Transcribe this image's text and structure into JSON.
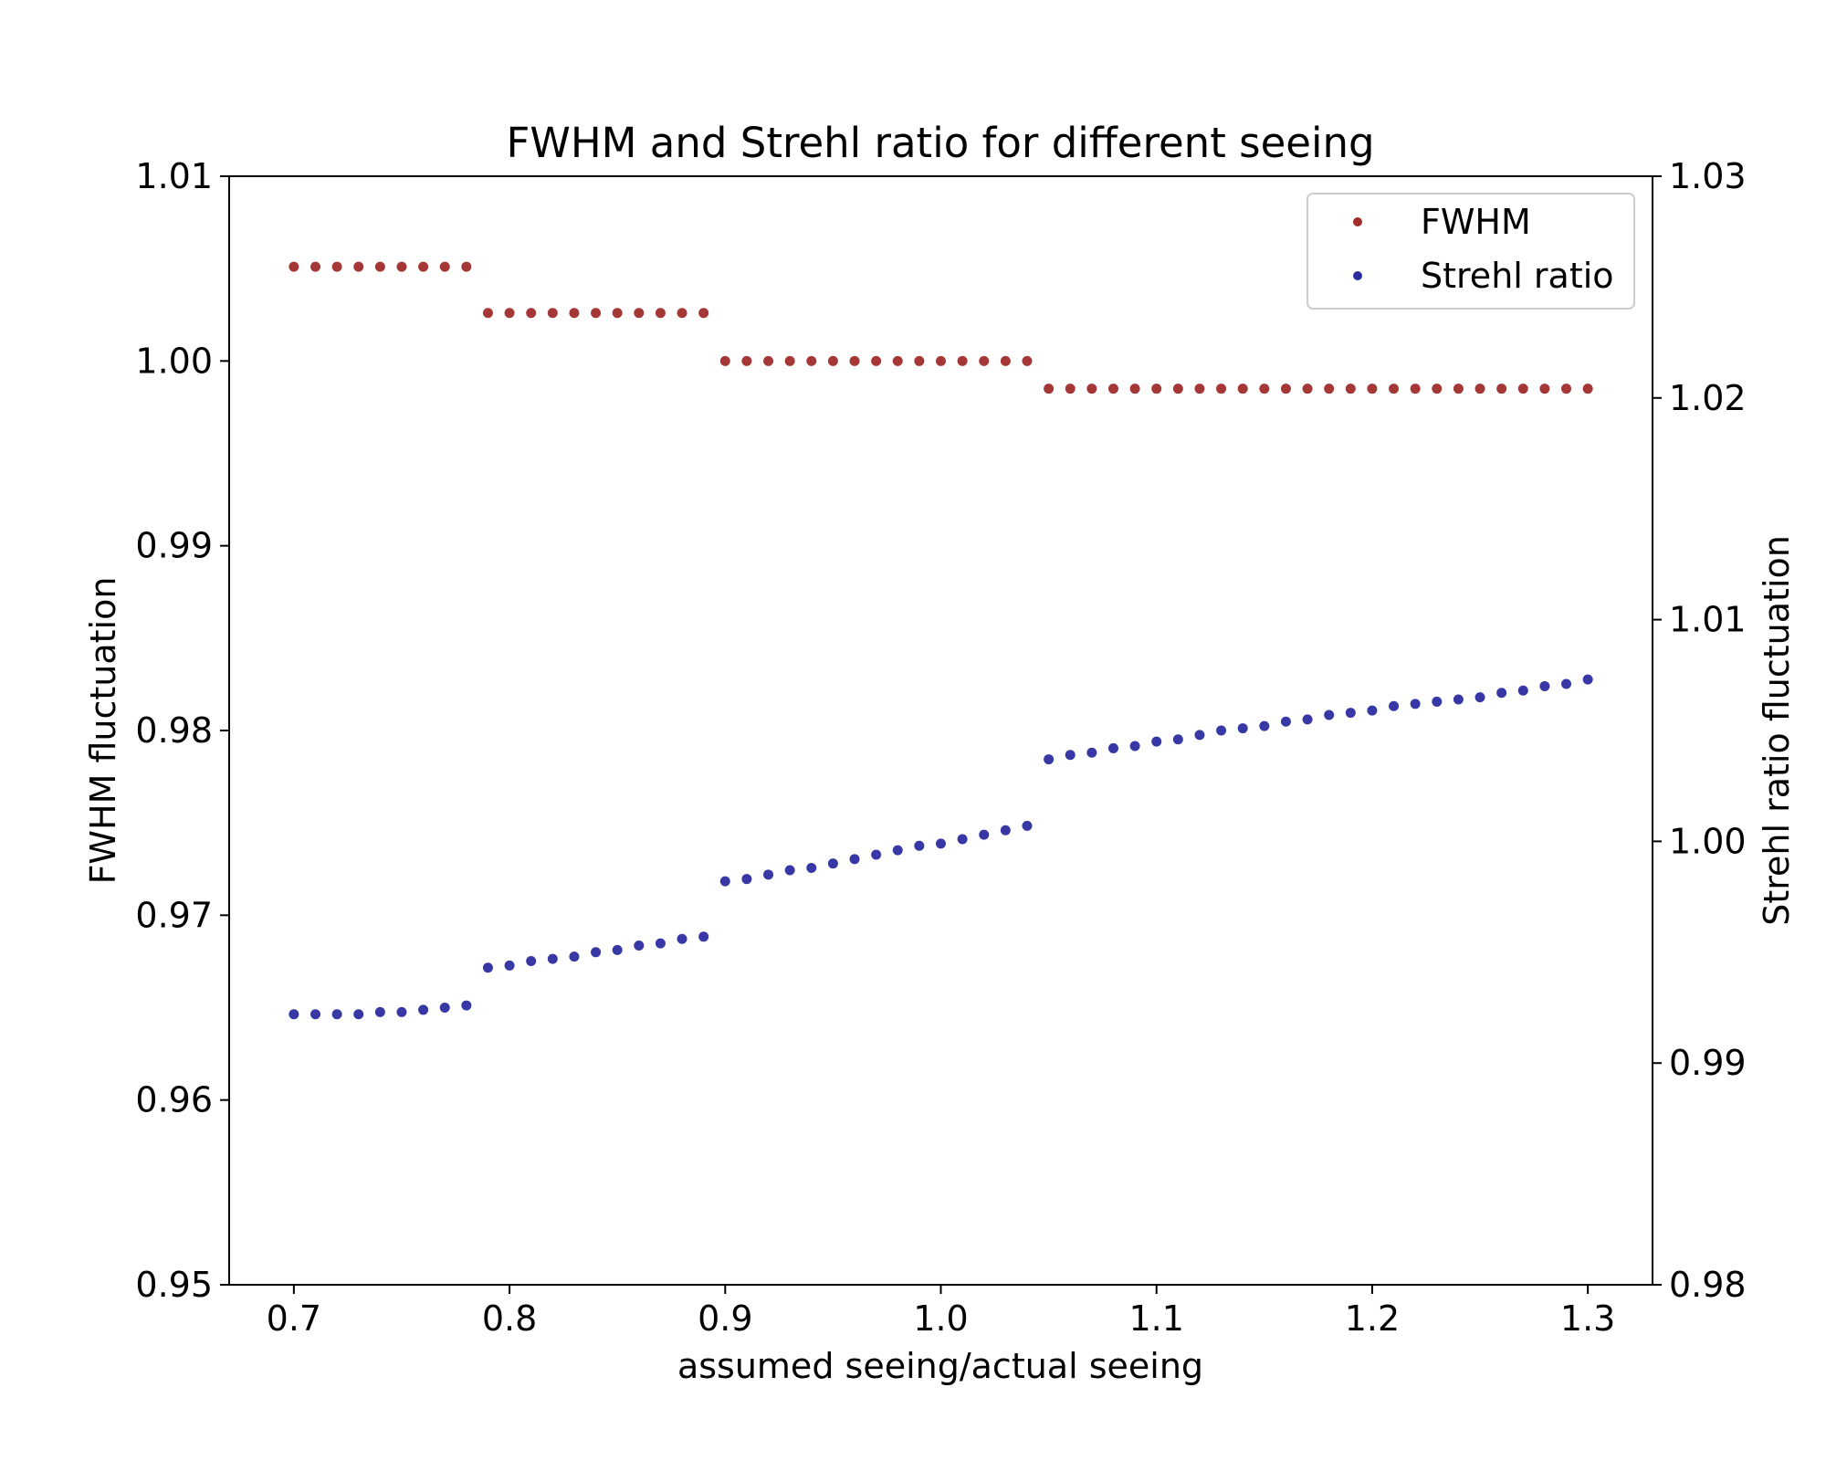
{
  "chart_data": {
    "type": "scatter",
    "title": "FWHM and Strehl ratio for different seeing",
    "xlabel": "assumed seeing/actual seeing",
    "ylabel_left": "FWHM fluctuation",
    "ylabel_right": "Strehl ratio fluctuation",
    "xlim": [
      0.67,
      1.33
    ],
    "ylim_left": [
      0.95,
      1.01
    ],
    "ylim_right": [
      0.98,
      1.03
    ],
    "x_ticks": [
      "0.7",
      "0.8",
      "0.9",
      "1.0",
      "1.1",
      "1.2",
      "1.3"
    ],
    "y_ticks_left": [
      "0.95",
      "0.96",
      "0.97",
      "0.98",
      "0.99",
      "1.00",
      "1.01"
    ],
    "y_ticks_right": [
      "0.98",
      "0.99",
      "1.00",
      "1.01",
      "1.02",
      "1.03"
    ],
    "legend_position": "top-right",
    "x": [
      0.7,
      0.71,
      0.72,
      0.73,
      0.74,
      0.75,
      0.76,
      0.77,
      0.78,
      0.79,
      0.8,
      0.81,
      0.82,
      0.83,
      0.84,
      0.85,
      0.86,
      0.87,
      0.88,
      0.89,
      0.9,
      0.91,
      0.92,
      0.93,
      0.94,
      0.95,
      0.96,
      0.97,
      0.98,
      0.99,
      1.0,
      1.01,
      1.02,
      1.03,
      1.04,
      1.05,
      1.06,
      1.07,
      1.08,
      1.09,
      1.1,
      1.11,
      1.12,
      1.13,
      1.14,
      1.15,
      1.16,
      1.17,
      1.18,
      1.19,
      1.2,
      1.21,
      1.22,
      1.23,
      1.24,
      1.25,
      1.26,
      1.27,
      1.28,
      1.29,
      1.3
    ],
    "series": [
      {
        "name": "FWHM",
        "axis": "left",
        "color": "#a02c2c",
        "values": [
          1.0051,
          1.0051,
          1.0051,
          1.0051,
          1.0051,
          1.0051,
          1.0051,
          1.0051,
          1.0051,
          1.0026,
          1.0026,
          1.0026,
          1.0026,
          1.0026,
          1.0026,
          1.0026,
          1.0026,
          1.0026,
          1.0026,
          1.0026,
          1.0,
          1.0,
          1.0,
          1.0,
          1.0,
          1.0,
          1.0,
          1.0,
          1.0,
          1.0,
          1.0,
          1.0,
          1.0,
          1.0,
          1.0,
          0.9985,
          0.9985,
          0.9985,
          0.9985,
          0.9985,
          0.9985,
          0.9985,
          0.9985,
          0.9985,
          0.9985,
          0.9985,
          0.9985,
          0.9985,
          0.9985,
          0.9985,
          0.9985,
          0.9985,
          0.9985,
          0.9985,
          0.9985,
          0.9985,
          0.9985,
          0.9985,
          0.9985,
          0.9985,
          0.9985
        ]
      },
      {
        "name": "Strehl ratio",
        "axis": "right",
        "color": "#2c2ca0",
        "values": [
          0.9922,
          0.9922,
          0.9922,
          0.9922,
          0.9923,
          0.9923,
          0.9924,
          0.9925,
          0.9926,
          0.9943,
          0.9944,
          0.9946,
          0.9947,
          0.9948,
          0.995,
          0.9951,
          0.9953,
          0.9954,
          0.9956,
          0.9957,
          0.9982,
          0.9983,
          0.9985,
          0.9987,
          0.9988,
          0.999,
          0.9992,
          0.9994,
          0.9996,
          0.9998,
          0.9999,
          1.0001,
          1.0003,
          1.0005,
          1.0007,
          1.0037,
          1.0039,
          1.004,
          1.0042,
          1.0043,
          1.0045,
          1.0046,
          1.0048,
          1.005,
          1.0051,
          1.0052,
          1.0054,
          1.0055,
          1.0057,
          1.0058,
          1.0059,
          1.0061,
          1.0062,
          1.0063,
          1.0064,
          1.0065,
          1.0067,
          1.0068,
          1.007,
          1.0071,
          1.0073
        ]
      }
    ]
  }
}
